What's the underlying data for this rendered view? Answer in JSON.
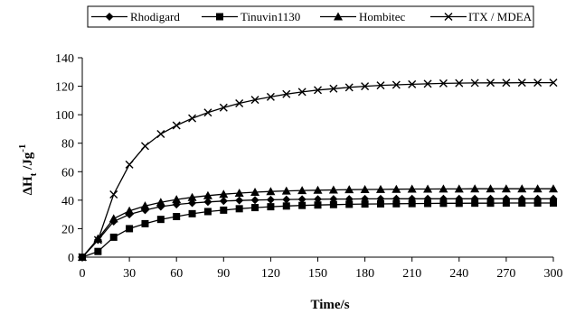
{
  "chart_data": {
    "type": "line",
    "xlabel": "Time/s",
    "ylabel": "ΔH",
    "ylabel_sub": "t",
    "ylabel_unit": " /Jg",
    "ylabel_sup": "-1",
    "xlim": [
      0,
      300
    ],
    "ylim": [
      0,
      140
    ],
    "x_ticks": [
      0,
      30,
      60,
      90,
      120,
      150,
      180,
      210,
      240,
      270,
      300
    ],
    "y_ticks": [
      0,
      20,
      40,
      60,
      80,
      100,
      120,
      140
    ],
    "grid": false,
    "legend_position": "top",
    "series": [
      {
        "name": "Rhodigard",
        "marker": "diamond",
        "x": [
          0,
          10,
          20,
          30,
          40,
          50,
          60,
          70,
          80,
          90,
          100,
          110,
          120,
          130,
          140,
          150,
          160,
          170,
          180,
          190,
          200,
          210,
          220,
          230,
          240,
          250,
          260,
          270,
          280,
          290,
          300
        ],
        "values": [
          0,
          12,
          25,
          30,
          33,
          35.5,
          37,
          38,
          38.8,
          39.4,
          39.8,
          40.1,
          40.3,
          40.5,
          40.6,
          40.7,
          40.8,
          40.8,
          40.9,
          40.9,
          41,
          41,
          41,
          41,
          41,
          41,
          41,
          41,
          41,
          41,
          41
        ]
      },
      {
        "name": "Tinuvin1130",
        "marker": "square",
        "x": [
          0,
          10,
          20,
          30,
          40,
          50,
          60,
          70,
          80,
          90,
          100,
          110,
          120,
          130,
          140,
          150,
          160,
          170,
          180,
          190,
          200,
          210,
          220,
          230,
          240,
          250,
          260,
          270,
          280,
          290,
          300
        ],
        "values": [
          0,
          4,
          14,
          20,
          23.5,
          26.5,
          28.5,
          30.5,
          32,
          33,
          34,
          34.8,
          35.4,
          35.9,
          36.3,
          36.6,
          36.9,
          37.1,
          37.3,
          37.4,
          37.5,
          37.6,
          37.7,
          37.8,
          37.8,
          37.9,
          37.9,
          38,
          38,
          38,
          38
        ]
      },
      {
        "name": "Hombitec",
        "marker": "triangle",
        "x": [
          0,
          10,
          20,
          30,
          40,
          50,
          60,
          70,
          80,
          90,
          100,
          110,
          120,
          130,
          140,
          150,
          160,
          170,
          180,
          190,
          200,
          210,
          220,
          230,
          240,
          250,
          260,
          270,
          280,
          290,
          300
        ],
        "values": [
          0,
          13,
          27,
          32.5,
          36,
          38.5,
          40.5,
          42,
          43.2,
          44.2,
          45,
          45.6,
          46.1,
          46.5,
          46.8,
          47,
          47.2,
          47.4,
          47.5,
          47.6,
          47.7,
          47.8,
          47.8,
          47.9,
          47.9,
          48,
          48,
          48,
          48,
          48,
          48
        ]
      },
      {
        "name": "ITX / MDEA",
        "marker": "x",
        "x": [
          0,
          10,
          20,
          30,
          40,
          50,
          60,
          70,
          80,
          90,
          100,
          110,
          120,
          130,
          140,
          150,
          160,
          170,
          180,
          190,
          200,
          210,
          220,
          230,
          240,
          250,
          260,
          270,
          280,
          290,
          300
        ],
        "values": [
          0,
          12,
          44,
          65,
          78,
          86.5,
          92.5,
          97.5,
          101.5,
          105,
          108,
          110.5,
          112.5,
          114.5,
          116,
          117.3,
          118.3,
          119.2,
          120,
          120.6,
          121,
          121.4,
          121.7,
          122,
          122.2,
          122.3,
          122.4,
          122.4,
          122.5,
          122.5,
          122.5
        ]
      }
    ]
  }
}
